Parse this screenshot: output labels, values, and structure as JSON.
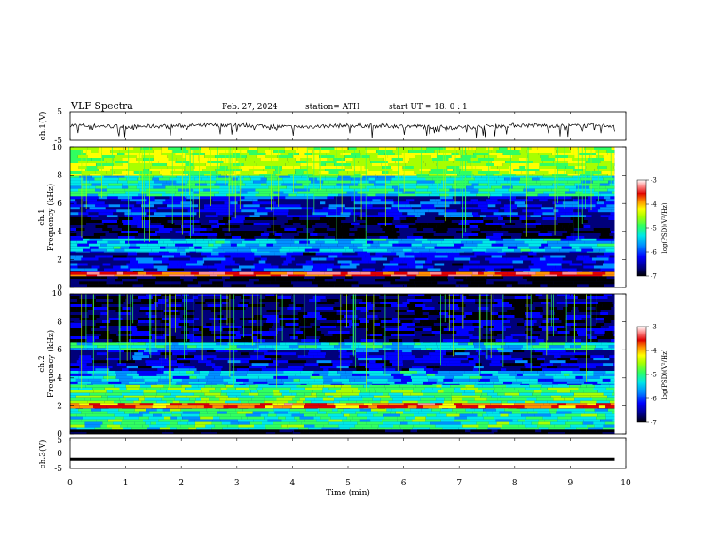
{
  "header": {
    "title": "VLF  Spectra",
    "date": "Feb. 27, 2024",
    "station": "station= ATH",
    "start": "start  UT  =    18: 0   : 1"
  },
  "colors": {
    "colormap": [
      "#000000",
      "#00007a",
      "#0000ff",
      "#0090ff",
      "#00e8e8",
      "#30ff60",
      "#a8ff00",
      "#ffff00",
      "#ff9000",
      "#e00000",
      "#ff9090",
      "#ffffff"
    ],
    "trace": "#000000"
  },
  "chart_data": [
    {
      "type": "line",
      "panel": "ch1-waveform",
      "ylabel": "ch.1(V)",
      "ylim": [
        -5,
        5
      ],
      "yticks": [
        "5",
        "-5"
      ],
      "x": [
        0,
        1,
        2,
        3,
        4,
        5,
        6,
        7,
        8,
        9,
        9.8
      ],
      "y": [
        0.3,
        -0.2,
        0.1,
        0.4,
        -0.3,
        0.2,
        0.0,
        -0.4,
        0.3,
        0.1,
        0.2
      ],
      "note_style": "noisy trace with frequent downward spikes"
    },
    {
      "type": "heatmap",
      "panel": "ch1-spectrogram",
      "ylabel": "ch.1\nFrequency  (kHz)",
      "ylim": [
        0,
        10
      ],
      "yticks": [
        "0",
        "2",
        "4",
        "6",
        "8",
        "10"
      ],
      "colorbar": {
        "label": "log(PSD)(V²/Hz)",
        "range": [
          -7,
          -3
        ],
        "ticks": [
          "-3",
          "-4",
          "-5",
          "-6",
          "-7"
        ]
      },
      "x_range_min": [
        0,
        9.8
      ],
      "band_levels_log_psd": [
        {
          "freq_khz": [
            0,
            0.8
          ],
          "level": -6.8
        },
        {
          "freq_khz": [
            0.8,
            1.1
          ],
          "level": -3.6
        },
        {
          "freq_khz": [
            1.1,
            2.5
          ],
          "level": -6.2
        },
        {
          "freq_khz": [
            2.5,
            3.5
          ],
          "level": -5.6
        },
        {
          "freq_khz": [
            3.5,
            5.0
          ],
          "level": -6.6
        },
        {
          "freq_khz": [
            5.0,
            6.5
          ],
          "level": -6.1
        },
        {
          "freq_khz": [
            6.5,
            8.0
          ],
          "level": -5.3
        },
        {
          "freq_khz": [
            8.0,
            10.0
          ],
          "level": -4.6
        }
      ]
    },
    {
      "type": "heatmap",
      "panel": "ch2-spectrogram",
      "ylabel": "ch.2\nFrequency  (kHz)",
      "ylim": [
        0,
        10
      ],
      "yticks": [
        "0",
        "2",
        "4",
        "6",
        "8",
        "10"
      ],
      "colorbar": {
        "label": "log(PSD)(V²/Hz)",
        "range": [
          -7,
          -3
        ],
        "ticks": [
          "-3",
          "-4",
          "-5",
          "-6",
          "-7"
        ]
      },
      "x_range_min": [
        0,
        9.8
      ],
      "band_levels_log_psd": [
        {
          "freq_khz": [
            0,
            0.3
          ],
          "level": -6.9
        },
        {
          "freq_khz": [
            0.3,
            1.8
          ],
          "level": -5.2
        },
        {
          "freq_khz": [
            1.8,
            2.2
          ],
          "level": -3.8
        },
        {
          "freq_khz": [
            2.2,
            3.5
          ],
          "level": -5.0
        },
        {
          "freq_khz": [
            3.5,
            4.5
          ],
          "level": -5.6
        },
        {
          "freq_khz": [
            4.5,
            6.0
          ],
          "level": -6.3
        },
        {
          "freq_khz": [
            6.0,
            6.5
          ],
          "level": -5.4
        },
        {
          "freq_khz": [
            6.5,
            10.0
          ],
          "level": -6.5
        }
      ]
    },
    {
      "type": "line",
      "panel": "ch3-waveform",
      "ylabel": "ch.3(V)",
      "ylim": [
        -5,
        5
      ],
      "yticks": [
        "5",
        "0",
        "-5"
      ],
      "x": [
        0,
        9.8
      ],
      "y": [
        -2,
        -2
      ]
    }
  ],
  "xaxis": {
    "label": "Time  (min)",
    "ticks": [
      "0",
      "1",
      "2",
      "3",
      "4",
      "5",
      "6",
      "7",
      "8",
      "9",
      "10"
    ],
    "xlim": [
      0,
      10
    ]
  }
}
